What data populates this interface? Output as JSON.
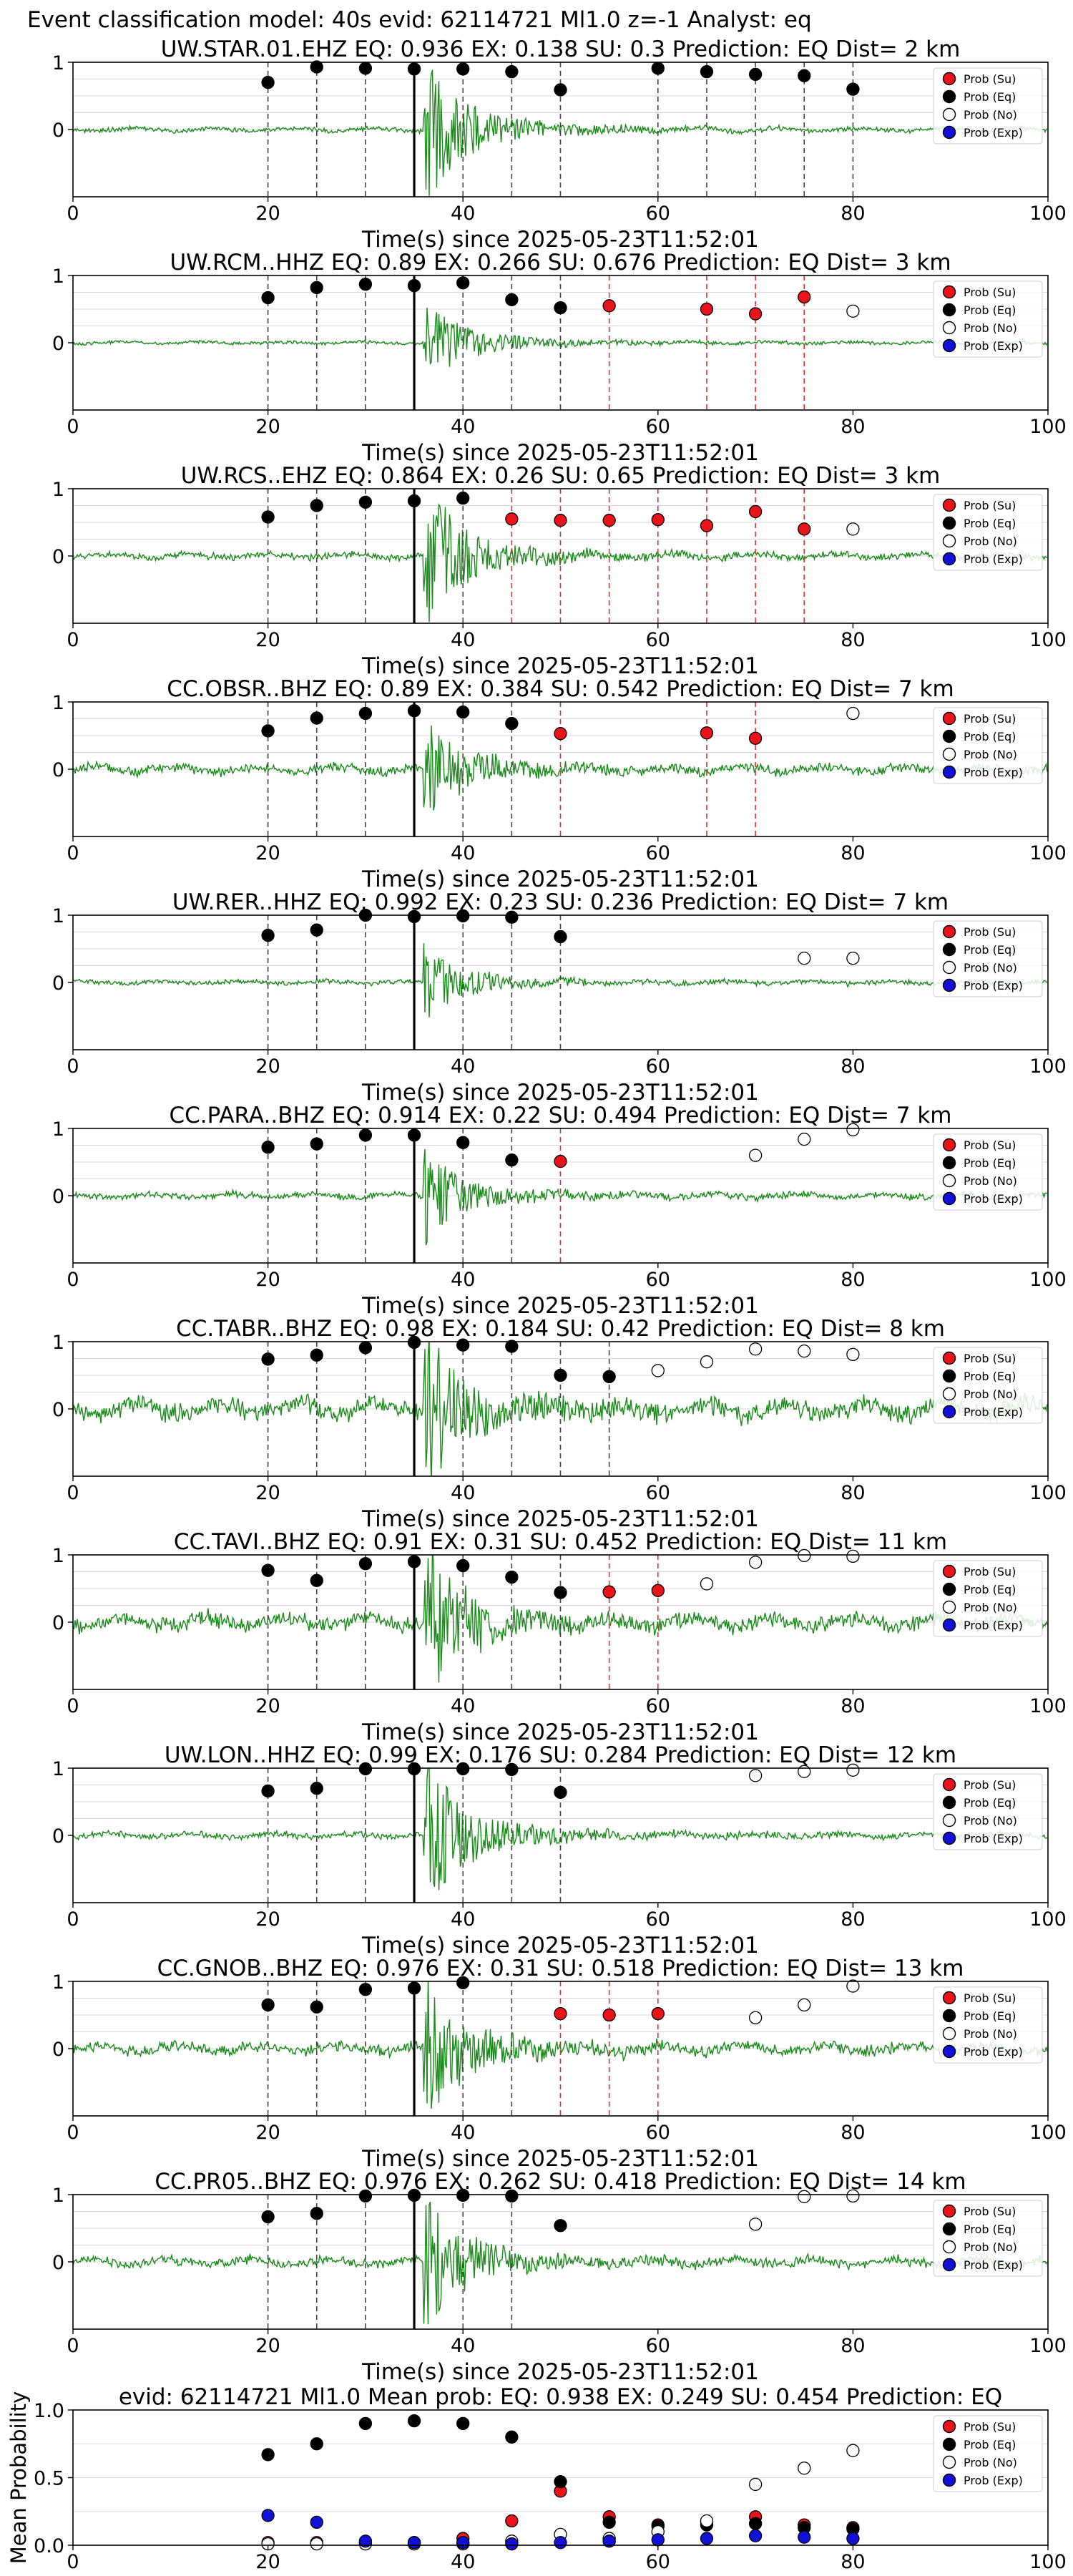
{
  "figure": {
    "suptitle": "Event classification model: 40s evid: 62114721 Ml1.0 z=-1 Analyst: eq"
  },
  "legend": {
    "labels": [
      "Prob (Su)",
      "Prob (Eq)",
      "Prob (No)",
      "Prob (Exp)"
    ],
    "colors": [
      "#e8141a",
      "#000000",
      "#ffffff",
      "#1010d8"
    ]
  },
  "colors": {
    "waveform": "#1a8a1a",
    "su_line": "#e0302a",
    "eq_line": "#444444",
    "pick_line": "#000000",
    "grid": "#d8d8d8"
  },
  "chart_data": [
    {
      "type": "scatter",
      "title": "UW.STAR.01.EHZ   EQ: 0.936  EX: 0.138  SU: 0.3   Prediction: EQ    Dist= 2 km",
      "xlabel": "Time(s) since 2025-05-23T11:52:01",
      "xlim": [
        0,
        100
      ],
      "ylim": [
        -1,
        1
      ],
      "xticks": [
        "0",
        "20",
        "40",
        "60",
        "80",
        "100"
      ],
      "yticks": [
        "1",
        "0"
      ],
      "pick": 35,
      "amp": 0.95,
      "series": [
        {
          "name": "Prob (Eq)",
          "x": [
            20,
            25,
            30,
            35,
            40,
            45,
            50,
            60,
            65,
            70,
            75,
            80
          ],
          "y": [
            0.7,
            0.93,
            0.91,
            0.9,
            0.9,
            0.86,
            0.59,
            0.91,
            0.86,
            0.82,
            0.8,
            0.6
          ]
        }
      ],
      "vlines_eq": [
        20,
        25,
        30,
        40,
        45,
        50,
        60,
        65,
        70,
        75,
        80
      ],
      "vlines_su": []
    },
    {
      "type": "scatter",
      "title": "UW.RCM..HHZ   EQ: 0.89  EX: 0.266  SU: 0.676   Prediction: EQ    Dist= 3 km",
      "xlabel": "Time(s) since 2025-05-23T11:52:01",
      "xlim": [
        0,
        100
      ],
      "ylim": [
        -1,
        1
      ],
      "xticks": [
        "0",
        "20",
        "40",
        "60",
        "80",
        "100"
      ],
      "yticks": [
        "1",
        "0"
      ],
      "pick": 35,
      "amp": 0.55,
      "series": [
        {
          "name": "Prob (Eq)",
          "x": [
            20,
            25,
            30,
            35,
            40,
            45,
            50
          ],
          "y": [
            0.67,
            0.82,
            0.87,
            0.85,
            0.89,
            0.64,
            0.52
          ]
        },
        {
          "name": "Prob (Su)",
          "x": [
            55,
            65,
            70,
            75
          ],
          "y": [
            0.55,
            0.5,
            0.43,
            0.68
          ]
        },
        {
          "name": "Prob (No)",
          "x": [
            80
          ],
          "y": [
            0.47
          ]
        }
      ],
      "vlines_eq": [
        20,
        25,
        30,
        40,
        45,
        50
      ],
      "vlines_su": [
        55,
        65,
        70,
        75
      ]
    },
    {
      "type": "scatter",
      "title": "UW.RCS..EHZ   EQ: 0.864  EX: 0.26  SU: 0.65   Prediction: EQ    Dist= 3 km",
      "xlabel": "Time(s) since 2025-05-23T11:52:01",
      "xlim": [
        0,
        100
      ],
      "ylim": [
        -1,
        1
      ],
      "xticks": [
        "0",
        "20",
        "40",
        "60",
        "80",
        "100"
      ],
      "yticks": [
        "1",
        "0"
      ],
      "pick": 35,
      "amp": 0.95,
      "series": [
        {
          "name": "Prob (Eq)",
          "x": [
            20,
            25,
            30,
            35,
            40
          ],
          "y": [
            0.58,
            0.75,
            0.8,
            0.82,
            0.86
          ]
        },
        {
          "name": "Prob (Su)",
          "x": [
            45,
            50,
            55,
            60,
            65,
            70,
            75
          ],
          "y": [
            0.55,
            0.53,
            0.53,
            0.54,
            0.45,
            0.66,
            0.4
          ]
        },
        {
          "name": "Prob (No)",
          "x": [
            80
          ],
          "y": [
            0.4
          ]
        }
      ],
      "vlines_eq": [
        20,
        25,
        30,
        40
      ],
      "vlines_su": [
        45,
        50,
        55,
        60,
        65,
        70,
        75
      ]
    },
    {
      "type": "scatter",
      "title": "CC.OBSR..BHZ   EQ: 0.89  EX: 0.384  SU: 0.542   Prediction: EQ    Dist= 7 km",
      "xlabel": "Time(s) since 2025-05-23T11:52:01",
      "xlim": [
        0,
        100
      ],
      "ylim": [
        -1,
        1
      ],
      "xticks": [
        "0",
        "20",
        "40",
        "60",
        "80",
        "100"
      ],
      "yticks": [
        "1",
        "0"
      ],
      "pick": 35,
      "amp": 0.6,
      "series": [
        {
          "name": "Prob (Eq)",
          "x": [
            20,
            25,
            30,
            35,
            40,
            45
          ],
          "y": [
            0.57,
            0.76,
            0.83,
            0.87,
            0.85,
            0.68
          ]
        },
        {
          "name": "Prob (Su)",
          "x": [
            50,
            65,
            70
          ],
          "y": [
            0.53,
            0.54,
            0.46
          ]
        },
        {
          "name": "Prob (No)",
          "x": [
            80
          ],
          "y": [
            0.83
          ]
        }
      ],
      "vlines_eq": [
        20,
        25,
        30,
        40,
        45
      ],
      "vlines_su": [
        50,
        65,
        70
      ]
    },
    {
      "type": "scatter",
      "title": "UW.RER..HHZ   EQ: 0.992  EX: 0.23  SU: 0.236   Prediction: EQ    Dist= 7 km",
      "xlabel": "Time(s) since 2025-05-23T11:52:01",
      "xlim": [
        0,
        100
      ],
      "ylim": [
        -1,
        1
      ],
      "xticks": [
        "0",
        "20",
        "40",
        "60",
        "80",
        "100"
      ],
      "yticks": [
        "1",
        "0"
      ],
      "pick": 35,
      "amp": 0.45,
      "series": [
        {
          "name": "Prob (Eq)",
          "x": [
            20,
            25,
            30,
            35,
            40,
            45,
            50
          ],
          "y": [
            0.7,
            0.78,
            1.0,
            0.98,
            0.99,
            0.97,
            0.68
          ]
        },
        {
          "name": "Prob (No)",
          "x": [
            75,
            80
          ],
          "y": [
            0.36,
            0.36
          ]
        }
      ],
      "vlines_eq": [
        20,
        25,
        30,
        40,
        45,
        50
      ],
      "vlines_su": []
    },
    {
      "type": "scatter",
      "title": "CC.PARA..BHZ   EQ: 0.914  EX: 0.22  SU: 0.494   Prediction: EQ    Dist= 7 km",
      "xlabel": "Time(s) since 2025-05-23T11:52:01",
      "xlim": [
        0,
        100
      ],
      "ylim": [
        -1,
        1
      ],
      "xticks": [
        "0",
        "20",
        "40",
        "60",
        "80",
        "100"
      ],
      "yticks": [
        "1",
        "0"
      ],
      "pick": 35,
      "amp": 0.55,
      "series": [
        {
          "name": "Prob (Eq)",
          "x": [
            20,
            25,
            30,
            35,
            40,
            45
          ],
          "y": [
            0.72,
            0.77,
            0.9,
            0.9,
            0.79,
            0.53
          ]
        },
        {
          "name": "Prob (Su)",
          "x": [
            50
          ],
          "y": [
            0.51
          ]
        },
        {
          "name": "Prob (No)",
          "x": [
            70,
            75,
            80
          ],
          "y": [
            0.6,
            0.84,
            0.98
          ]
        }
      ],
      "vlines_eq": [
        20,
        25,
        30,
        40,
        45
      ],
      "vlines_su": [
        50
      ]
    },
    {
      "type": "scatter",
      "title": "CC.TABR..BHZ   EQ: 0.98  EX: 0.184  SU: 0.42   Prediction: EQ    Dist= 8 km",
      "xlabel": "Time(s) since 2025-05-23T11:52:01",
      "xlim": [
        0,
        100
      ],
      "ylim": [
        -1,
        1
      ],
      "xticks": [
        "0",
        "20",
        "40",
        "60",
        "80",
        "100"
      ],
      "yticks": [
        "1",
        "0"
      ],
      "pick": 35,
      "amp": 0.95,
      "series": [
        {
          "name": "Prob (Eq)",
          "x": [
            20,
            25,
            30,
            35,
            40,
            45,
            50,
            55
          ],
          "y": [
            0.74,
            0.8,
            0.91,
            0.99,
            0.95,
            0.93,
            0.5,
            0.48
          ]
        },
        {
          "name": "Prob (No)",
          "x": [
            60,
            65,
            70,
            75,
            80
          ],
          "y": [
            0.57,
            0.7,
            0.89,
            0.86,
            0.81
          ]
        }
      ],
      "vlines_eq": [
        20,
        25,
        30,
        40,
        45,
        50,
        55
      ],
      "vlines_su": []
    },
    {
      "type": "scatter",
      "title": "CC.TAVI..BHZ   EQ: 0.91  EX: 0.31  SU: 0.452   Prediction: EQ    Dist= 11 km",
      "xlabel": "Time(s) since 2025-05-23T11:52:01",
      "xlim": [
        0,
        100
      ],
      "ylim": [
        -1,
        1
      ],
      "xticks": [
        "0",
        "20",
        "40",
        "60",
        "80",
        "100"
      ],
      "yticks": [
        "1",
        "0"
      ],
      "pick": 35,
      "amp": 0.98,
      "series": [
        {
          "name": "Prob (Eq)",
          "x": [
            20,
            25,
            30,
            35,
            40,
            45,
            50
          ],
          "y": [
            0.77,
            0.62,
            0.87,
            0.9,
            0.84,
            0.67,
            0.44
          ]
        },
        {
          "name": "Prob (Su)",
          "x": [
            55,
            60
          ],
          "y": [
            0.45,
            0.47
          ]
        },
        {
          "name": "Prob (No)",
          "x": [
            65,
            70,
            75,
            80
          ],
          "y": [
            0.57,
            0.89,
            0.99,
            0.98
          ]
        }
      ],
      "vlines_eq": [
        20,
        25,
        30,
        40,
        45,
        50
      ],
      "vlines_su": [
        55,
        60
      ]
    },
    {
      "type": "scatter",
      "title": "UW.LON..HHZ   EQ: 0.99  EX: 0.176  SU: 0.284   Prediction: EQ    Dist= 12 km",
      "xlabel": "Time(s) since 2025-05-23T11:52:01",
      "xlim": [
        0,
        100
      ],
      "ylim": [
        -1,
        1
      ],
      "xticks": [
        "0",
        "20",
        "40",
        "60",
        "80",
        "100"
      ],
      "yticks": [
        "1",
        "0"
      ],
      "pick": 35,
      "amp": 0.95,
      "series": [
        {
          "name": "Prob (Eq)",
          "x": [
            20,
            25,
            30,
            35,
            40,
            45,
            50
          ],
          "y": [
            0.66,
            0.7,
            0.99,
            0.99,
            0.99,
            0.98,
            0.64
          ]
        },
        {
          "name": "Prob (No)",
          "x": [
            70,
            75,
            80
          ],
          "y": [
            0.89,
            0.95,
            0.97
          ]
        }
      ],
      "vlines_eq": [
        20,
        25,
        30,
        40,
        45,
        50
      ],
      "vlines_su": []
    },
    {
      "type": "scatter",
      "title": "CC.GNOB..BHZ   EQ: 0.976  EX: 0.31  SU: 0.518   Prediction: EQ    Dist= 13 km",
      "xlabel": "Time(s) since 2025-05-23T11:52:01",
      "xlim": [
        0,
        100
      ],
      "ylim": [
        -1,
        1
      ],
      "xticks": [
        "0",
        "20",
        "40",
        "60",
        "80",
        "100"
      ],
      "yticks": [
        "1",
        "0"
      ],
      "pick": 35,
      "amp": 0.9,
      "series": [
        {
          "name": "Prob (Eq)",
          "x": [
            20,
            25,
            30,
            35,
            40
          ],
          "y": [
            0.65,
            0.62,
            0.88,
            0.9,
            0.98
          ]
        },
        {
          "name": "Prob (Su)",
          "x": [
            50,
            55,
            60
          ],
          "y": [
            0.52,
            0.5,
            0.52
          ]
        },
        {
          "name": "Prob (No)",
          "x": [
            70,
            75,
            80
          ],
          "y": [
            0.46,
            0.65,
            0.93
          ]
        }
      ],
      "vlines_eq": [
        20,
        25,
        30,
        40,
        45
      ],
      "vlines_su": [
        50,
        55,
        60
      ]
    },
    {
      "type": "scatter",
      "title": "CC.PR05..BHZ   EQ: 0.976  EX: 0.262  SU: 0.418   Prediction: EQ    Dist= 14 km",
      "xlabel": "Time(s) since 2025-05-23T11:52:01",
      "xlim": [
        0,
        100
      ],
      "ylim": [
        -1,
        1
      ],
      "xticks": [
        "0",
        "20",
        "40",
        "60",
        "80",
        "100"
      ],
      "yticks": [
        "1",
        "0"
      ],
      "pick": 35,
      "amp": 0.8,
      "series": [
        {
          "name": "Prob (Eq)",
          "x": [
            20,
            25,
            30,
            35,
            40,
            45,
            50
          ],
          "y": [
            0.67,
            0.72,
            0.98,
            0.99,
            0.99,
            0.98,
            0.54
          ]
        },
        {
          "name": "Prob (No)",
          "x": [
            70,
            75,
            80
          ],
          "y": [
            0.56,
            0.97,
            0.98
          ]
        }
      ],
      "vlines_eq": [
        20,
        25,
        30,
        40,
        45
      ],
      "vlines_su": []
    },
    {
      "type": "scatter",
      "title": "evid: 62114721  Ml1.0   Mean prob:    EQ: 0.938  EX: 0.249  SU: 0.454   Prediction: EQ",
      "xlabel": "",
      "ylabel": "Mean Probability",
      "xlim": [
        0,
        100
      ],
      "ylim": [
        0,
        1
      ],
      "xticks": [
        "0",
        "20",
        "40",
        "60",
        "80",
        "100"
      ],
      "yticks": [
        "1.0",
        "0.5",
        "0.0"
      ],
      "series": [
        {
          "name": "Prob (Su)",
          "x": [
            20,
            25,
            30,
            35,
            40,
            45,
            50,
            55,
            60,
            65,
            70,
            75,
            80
          ],
          "y": [
            0.02,
            0.02,
            0.02,
            0.02,
            0.05,
            0.18,
            0.4,
            0.21,
            0.15,
            0.17,
            0.21,
            0.15,
            0.13
          ]
        },
        {
          "name": "Prob (Eq)",
          "x": [
            20,
            25,
            30,
            35,
            40,
            45,
            50,
            55,
            60,
            65,
            70,
            75,
            80
          ],
          "y": [
            0.67,
            0.75,
            0.9,
            0.92,
            0.9,
            0.8,
            0.47,
            0.17,
            0.14,
            0.15,
            0.16,
            0.13,
            0.12
          ]
        },
        {
          "name": "Prob (No)",
          "x": [
            20,
            25,
            30,
            35,
            40,
            45,
            50,
            55,
            60,
            65,
            70,
            75,
            80
          ],
          "y": [
            0.01,
            0.01,
            0.01,
            0.01,
            0.01,
            0.03,
            0.08,
            0.05,
            0.1,
            0.18,
            0.45,
            0.57,
            0.7
          ]
        },
        {
          "name": "Prob (Exp)",
          "x": [
            20,
            25,
            30,
            35,
            40,
            45,
            50,
            55,
            60,
            65,
            70,
            75,
            80
          ],
          "y": [
            0.22,
            0.17,
            0.03,
            0.02,
            0.02,
            0.01,
            0.02,
            0.03,
            0.04,
            0.05,
            0.07,
            0.06,
            0.05
          ]
        }
      ],
      "vlines_eq": [],
      "vlines_su": []
    }
  ]
}
